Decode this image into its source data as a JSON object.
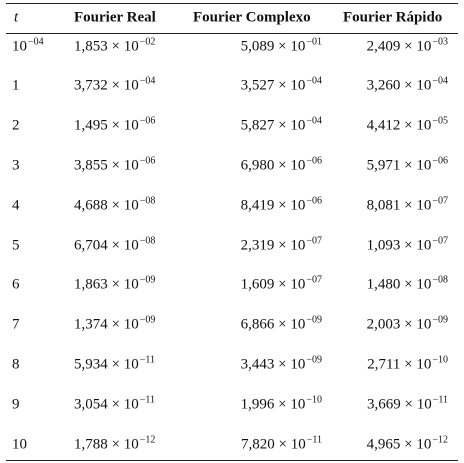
{
  "table": {
    "header": [
      "t",
      "Fourier Real",
      "Fourier Complexo",
      "Fourier Rápido"
    ],
    "rows": [
      [
        {
          "base": "10",
          "exp": "−04"
        },
        {
          "base": "1,853 × 10",
          "exp": "−02"
        },
        {
          "base": "5,089 × 10",
          "exp": "−01"
        },
        {
          "base": "2,409 × 10",
          "exp": "−03"
        }
      ],
      [
        "1",
        {
          "base": "3,732 × 10",
          "exp": "−04"
        },
        {
          "base": "3,527 × 10",
          "exp": "−04"
        },
        {
          "base": "3,260 × 10",
          "exp": "−04"
        }
      ],
      [
        "2",
        {
          "base": "1,495 × 10",
          "exp": "−06"
        },
        {
          "base": "5,827 × 10",
          "exp": "−04"
        },
        {
          "base": "4,412 × 10",
          "exp": "−05"
        }
      ],
      [
        "3",
        {
          "base": "3,855 × 10",
          "exp": "−06"
        },
        {
          "base": "6,980 × 10",
          "exp": "−06"
        },
        {
          "base": "5,971 × 10",
          "exp": "−06"
        }
      ],
      [
        "4",
        {
          "base": "4,688 × 10",
          "exp": "−08"
        },
        {
          "base": "8,419 × 10",
          "exp": "−06"
        },
        {
          "base": "8,081 × 10",
          "exp": "−07"
        }
      ],
      [
        "5",
        {
          "base": "6,704 × 10",
          "exp": "−08"
        },
        {
          "base": "2,319 × 10",
          "exp": "−07"
        },
        {
          "base": "1,093 × 10",
          "exp": "−07"
        }
      ],
      [
        "6",
        {
          "base": "1,863 × 10",
          "exp": "−09"
        },
        {
          "base": "1,609 × 10",
          "exp": "−07"
        },
        {
          "base": "1,480 × 10",
          "exp": "−08"
        }
      ],
      [
        "7",
        {
          "base": "1,374 × 10",
          "exp": "−09"
        },
        {
          "base": "6,866 × 10",
          "exp": "−09"
        },
        {
          "base": "2,003 × 10",
          "exp": "−09"
        }
      ],
      [
        "8",
        {
          "base": "5,934 × 10",
          "exp": "−11"
        },
        {
          "base": "3,443 × 10",
          "exp": "−09"
        },
        {
          "base": "2,711 × 10",
          "exp": "−10"
        }
      ],
      [
        "9",
        {
          "base": "3,054 × 10",
          "exp": "−11"
        },
        {
          "base": "1,996 × 10",
          "exp": "−10"
        },
        {
          "base": "3,669 × 10",
          "exp": "−11"
        }
      ],
      [
        "10",
        {
          "base": "1,788 × 10",
          "exp": "−12"
        },
        {
          "base": "7,820 × 10",
          "exp": "−11"
        },
        {
          "base": "4,965 × 10",
          "exp": "−12"
        }
      ]
    ]
  }
}
